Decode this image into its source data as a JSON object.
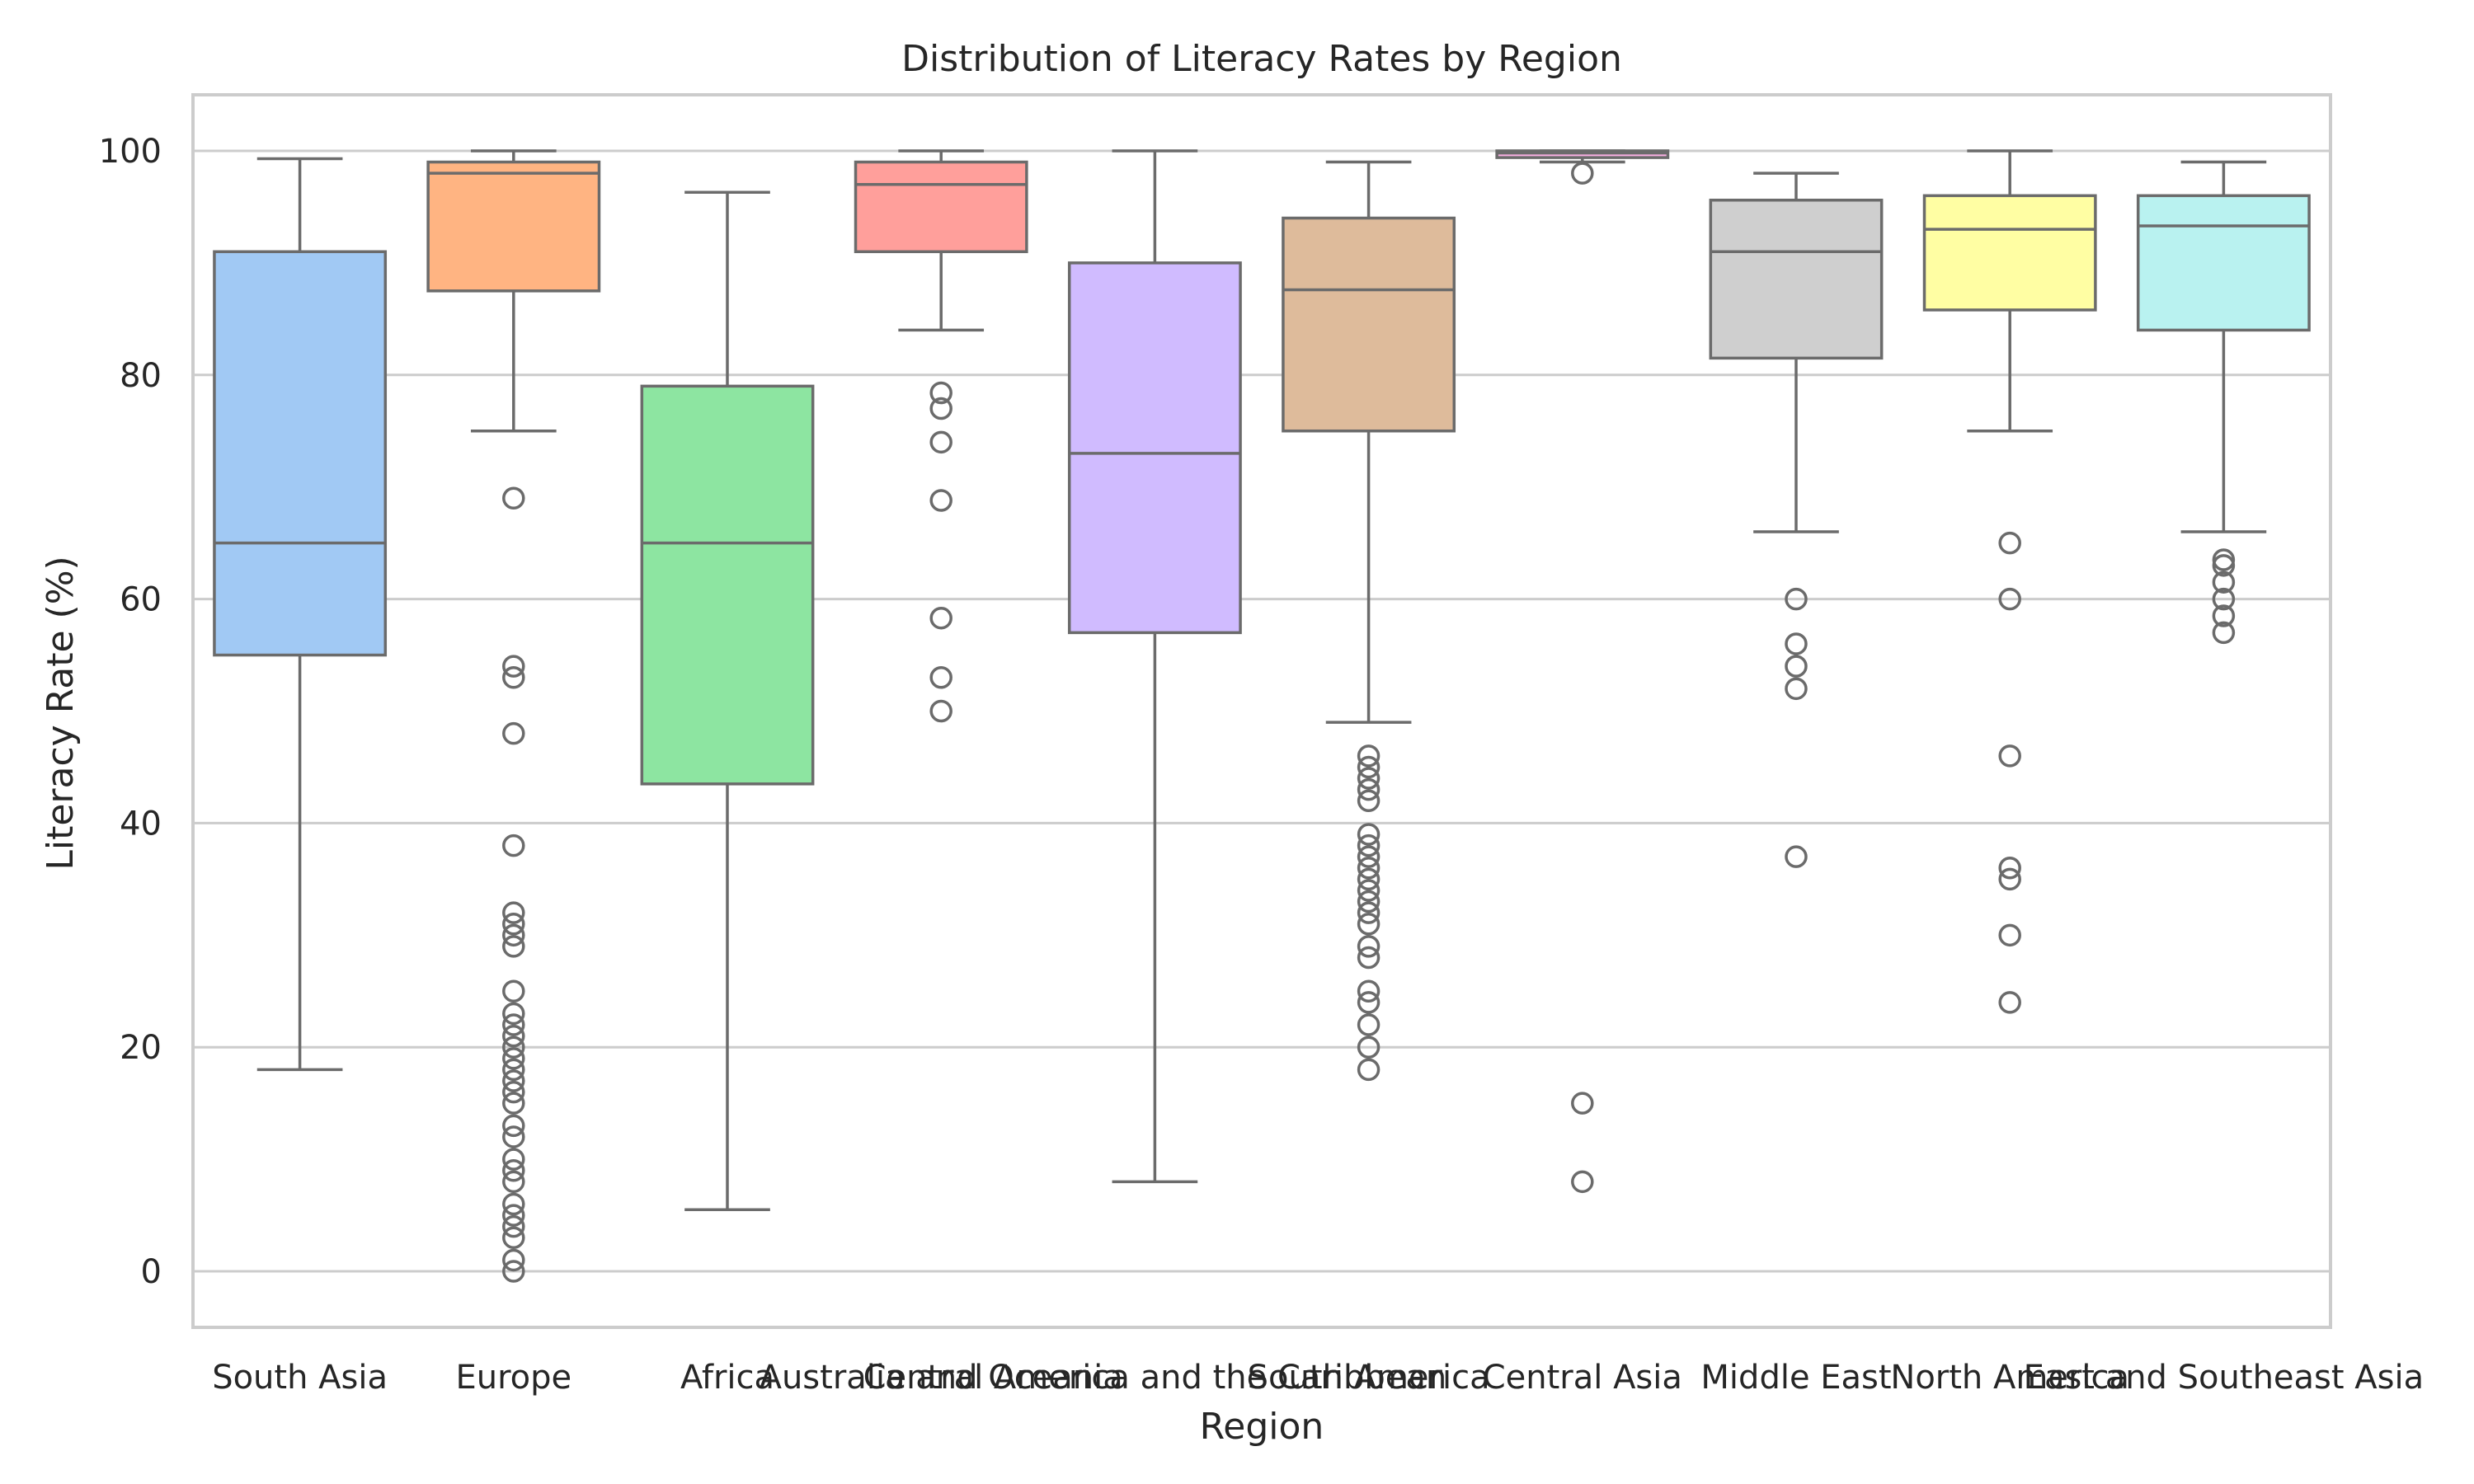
{
  "chart_data": {
    "type": "box",
    "title": "Distribution of Literacy Rates by Region",
    "xlabel": "Region",
    "ylabel": "Literacy Rate (%)",
    "ylim": [
      -5,
      105
    ],
    "yticks": [
      0,
      20,
      40,
      60,
      80,
      100
    ],
    "grid": "horizontal",
    "series": [
      {
        "name": "South Asia",
        "color": "#a1c9f4",
        "whislo": 18,
        "q1": 55,
        "med": 65,
        "q3": 91,
        "whishi": 99.3,
        "fliers": []
      },
      {
        "name": "Europe",
        "color": "#ffb482",
        "whislo": 75,
        "q1": 87.5,
        "med": 98,
        "q3": 99,
        "whishi": 100,
        "fliers": [
          69,
          54,
          53,
          48,
          38,
          32,
          31,
          30,
          29,
          25,
          23,
          22,
          21,
          20,
          19,
          18,
          17,
          16,
          15,
          13,
          12,
          10,
          9,
          8,
          6,
          5,
          4,
          3,
          1,
          0
        ]
      },
      {
        "name": "Africa",
        "color": "#8de5a1",
        "whislo": 5.5,
        "q1": 43.5,
        "med": 65,
        "q3": 79,
        "whishi": 96.3,
        "fliers": []
      },
      {
        "name": "Australia and Oceania",
        "color": "#ff9f9b",
        "whislo": 84,
        "q1": 91,
        "med": 97,
        "q3": 99,
        "whishi": 100,
        "fliers": [
          78.4,
          77,
          74,
          68.8,
          58.3,
          53,
          50
        ]
      },
      {
        "name": "Central America and the Caribbean",
        "color": "#d0bbff",
        "whislo": 8,
        "q1": 57,
        "med": 73,
        "q3": 90,
        "whishi": 100,
        "fliers": []
      },
      {
        "name": "South America",
        "color": "#debb9b",
        "whislo": 49,
        "q1": 75,
        "med": 87.6,
        "q3": 94,
        "whishi": 99,
        "fliers": [
          46,
          45,
          44,
          43,
          42,
          39,
          38,
          37,
          36,
          35,
          34,
          33,
          32,
          31,
          29,
          28,
          25,
          24,
          22,
          20,
          18
        ]
      },
      {
        "name": "Central Asia",
        "color": "#fab0e4",
        "whislo": 99,
        "q1": 99.4,
        "med": 99.8,
        "q3": 100,
        "whishi": 100,
        "fliers": [
          98,
          15,
          8
        ]
      },
      {
        "name": "Middle East",
        "color": "#cfcfcf",
        "whislo": 66,
        "q1": 81.5,
        "med": 91,
        "q3": 95.6,
        "whishi": 98,
        "fliers": [
          60,
          56,
          54,
          52,
          37
        ]
      },
      {
        "name": "North America",
        "color": "#fffea3",
        "whislo": 75,
        "q1": 85.8,
        "med": 93,
        "q3": 96,
        "whishi": 100,
        "fliers": [
          65,
          60,
          46,
          36,
          35,
          30,
          24
        ]
      },
      {
        "name": "East and Southeast Asia",
        "color": "#b9f2f0",
        "whislo": 66,
        "q1": 84,
        "med": 93.3,
        "q3": 96,
        "whishi": 99,
        "fliers": [
          63.5,
          63,
          61.5,
          60,
          58.5,
          57
        ]
      }
    ]
  }
}
